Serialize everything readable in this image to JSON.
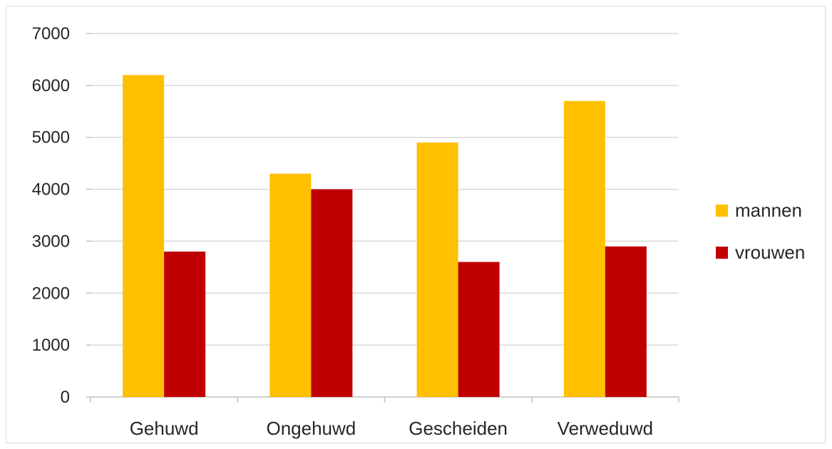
{
  "chart_data": {
    "type": "bar",
    "categories": [
      "Gehuwd",
      "Ongehuwd",
      "Gescheiden",
      "Verweduwd"
    ],
    "series": [
      {
        "name": "mannen",
        "values": [
          6200,
          4300,
          4900,
          5700
        ],
        "color": "#FFC000"
      },
      {
        "name": "vrouwen",
        "values": [
          2800,
          4000,
          2600,
          2900
        ],
        "color": "#C00000"
      }
    ],
    "ylim": [
      0,
      7000
    ],
    "yticks": [
      0,
      1000,
      2000,
      3000,
      4000,
      5000,
      6000,
      7000
    ],
    "grid": true,
    "legend": "right"
  }
}
